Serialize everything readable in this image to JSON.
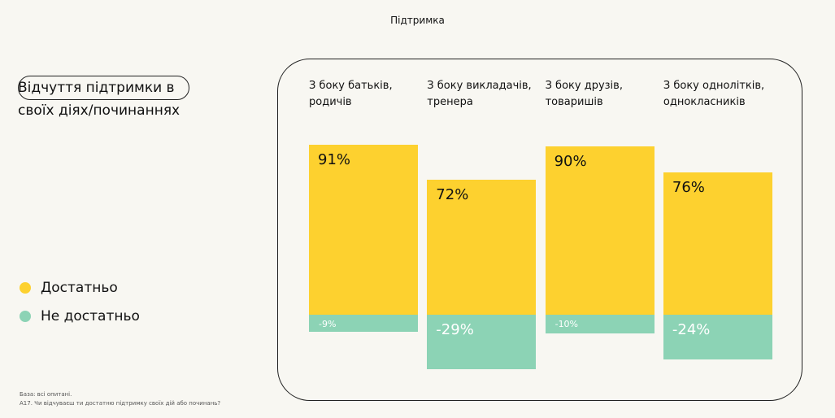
{
  "page_title": "Підтримка",
  "chart_data": {
    "type": "bar",
    "stacked": true,
    "title": "Відчуття підтримки в своїх діях/починаннях",
    "categories": [
      "З боку батьків, родичів",
      "З боку викладачів, тренера",
      "З боку друзів, товаришів",
      "З боку однолітків, однокласників"
    ],
    "series": [
      {
        "name": "Достатньо",
        "color": "#fdd12f",
        "values": [
          91,
          72,
          90,
          76
        ],
        "value_labels": [
          "91%",
          "72%",
          "90%",
          "76%"
        ]
      },
      {
        "name": "Не достатньо",
        "color": "#8cd3b5",
        "values": [
          -9,
          -29,
          -10,
          -24
        ],
        "value_labels": [
          "-9%",
          "-29%",
          "-10%",
          "-24%"
        ]
      }
    ],
    "legend": "left"
  },
  "footnotes": [
    "База: всі опитані.",
    "А17. Чи відчуваєш ти достатню підтримку своїх дій або починань?"
  ]
}
